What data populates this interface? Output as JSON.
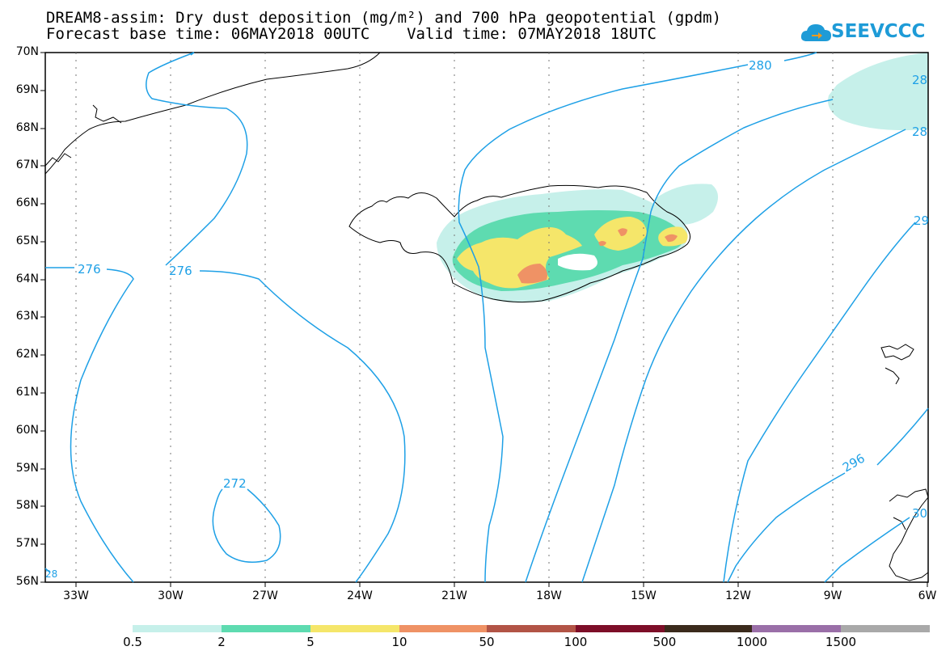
{
  "header": {
    "title_line1": "DREAM8-assim: Dry dust deposition (mg/m²) and 700 hPa geopotential (gpdm)",
    "title_line2": "Forecast base time: 06MAY2018 00UTC    Valid time: 07MAY2018 18UTC"
  },
  "logo": {
    "text": "SEEVCCC",
    "icon": "cloud-icon",
    "color": "#1e9bd7"
  },
  "map": {
    "lat_labels": [
      "70N",
      "69N",
      "68N",
      "67N",
      "66N",
      "65N",
      "64N",
      "63N",
      "62N",
      "61N",
      "60N",
      "59N",
      "58N",
      "57N",
      "56N"
    ],
    "lon_labels": [
      "33W",
      "30W",
      "27W",
      "24W",
      "21W",
      "18W",
      "15W",
      "12W",
      "9W",
      "6W"
    ],
    "contour_color": "#1ea0e6",
    "contour_labels": [
      "276",
      "276",
      "272",
      "280",
      "28",
      "28",
      "29",
      "296",
      "30",
      "28"
    ]
  },
  "colorbar": {
    "colors": [
      "#c6f0ea",
      "#5edbb0",
      "#f5e66a",
      "#ef9265",
      "#b25446",
      "#7d0e28",
      "#3b2a1c",
      "#9a6fa8",
      "#a9a9a9"
    ],
    "labels": [
      "0.5",
      "2",
      "5",
      "10",
      "50",
      "100",
      "500",
      "1000",
      "1500"
    ]
  }
}
